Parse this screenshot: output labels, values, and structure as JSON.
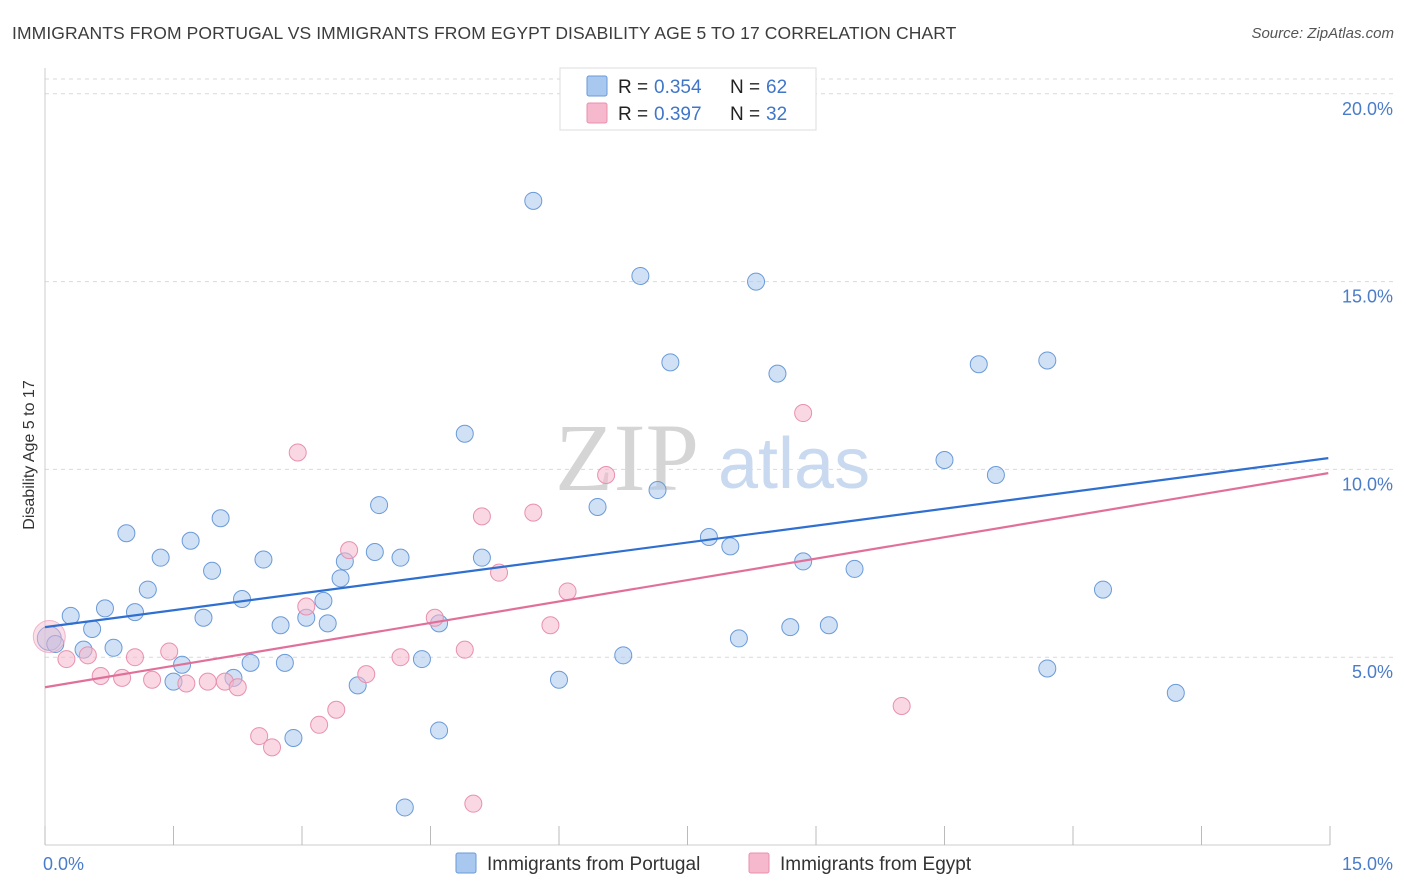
{
  "header": {
    "title": "IMMIGRANTS FROM PORTUGAL VS IMMIGRANTS FROM EGYPT DISABILITY AGE 5 TO 17 CORRELATION CHART",
    "source": "Source: ZipAtlas.com"
  },
  "watermark": {
    "zip": "ZIP",
    "atlas": "atlas"
  },
  "legend": {
    "r_label": "R =",
    "n_label": "N =",
    "portugal": {
      "r": "0.354",
      "n": "62"
    },
    "egypt": {
      "r": "0.397",
      "n": "32"
    }
  },
  "colors": {
    "portugal_fill": "#a9c8ef",
    "portugal_stroke": "#6a9ad8",
    "portugal_line": "#2e6fd0",
    "egypt_fill": "#f6b8cc",
    "egypt_stroke": "#e890ad",
    "egypt_line": "#e0709a",
    "tick_text": "#4a7cc9"
  },
  "chart_data": {
    "type": "scatter",
    "title": "IMMIGRANTS FROM PORTUGAL VS IMMIGRANTS FROM EGYPT DISABILITY AGE 5 TO 17 CORRELATION CHART",
    "xlabel": "",
    "ylabel": "Disability Age 5 to 17",
    "xlim": [
      0,
      15
    ],
    "ylim": [
      0,
      20.5
    ],
    "x_tick_labels": [
      "0.0%",
      "15.0%"
    ],
    "y_ticks": [
      5,
      10,
      15,
      20
    ],
    "y_tick_labels": [
      "5.0%",
      "10.0%",
      "15.0%",
      "20.0%"
    ],
    "grid": true,
    "legend_position": "top-center",
    "series": [
      {
        "name": "Immigrants from Portugal",
        "r": 0.354,
        "n": 62,
        "trend": {
          "x": [
            0,
            14.98
          ],
          "y": [
            5.8,
            10.3
          ]
        },
        "points": [
          [
            0.05,
            5.5
          ],
          [
            0.12,
            5.35
          ],
          [
            0.3,
            6.1
          ],
          [
            0.45,
            5.2
          ],
          [
            0.55,
            5.75
          ],
          [
            0.7,
            6.3
          ],
          [
            0.8,
            5.25
          ],
          [
            0.95,
            8.3
          ],
          [
            1.05,
            6.2
          ],
          [
            1.2,
            6.8
          ],
          [
            1.35,
            7.65
          ],
          [
            1.5,
            4.35
          ],
          [
            1.6,
            4.8
          ],
          [
            1.7,
            8.1
          ],
          [
            1.85,
            6.05
          ],
          [
            1.95,
            7.3
          ],
          [
            2.05,
            8.7
          ],
          [
            2.2,
            4.45
          ],
          [
            2.3,
            6.55
          ],
          [
            2.4,
            4.85
          ],
          [
            2.55,
            7.6
          ],
          [
            2.75,
            5.85
          ],
          [
            2.8,
            4.85
          ],
          [
            2.9,
            2.85
          ],
          [
            3.05,
            6.05
          ],
          [
            3.25,
            6.5
          ],
          [
            3.3,
            5.9
          ],
          [
            3.45,
            7.1
          ],
          [
            3.5,
            7.55
          ],
          [
            3.65,
            4.25
          ],
          [
            3.85,
            7.8
          ],
          [
            3.9,
            9.05
          ],
          [
            4.15,
            7.65
          ],
          [
            4.2,
            1.0
          ],
          [
            4.4,
            4.95
          ],
          [
            4.6,
            5.9
          ],
          [
            4.6,
            3.05
          ],
          [
            4.9,
            10.95
          ],
          [
            5.1,
            7.65
          ],
          [
            5.7,
            17.15
          ],
          [
            6.0,
            4.4
          ],
          [
            6.45,
            9.0
          ],
          [
            6.75,
            5.05
          ],
          [
            6.95,
            15.15
          ],
          [
            7.15,
            9.45
          ],
          [
            7.3,
            12.85
          ],
          [
            7.75,
            8.2
          ],
          [
            8.0,
            7.95
          ],
          [
            8.1,
            5.5
          ],
          [
            8.3,
            15.0
          ],
          [
            8.55,
            12.55
          ],
          [
            8.7,
            5.8
          ],
          [
            8.85,
            7.55
          ],
          [
            9.15,
            5.85
          ],
          [
            9.45,
            7.35
          ],
          [
            10.5,
            10.25
          ],
          [
            10.9,
            12.8
          ],
          [
            11.1,
            9.85
          ],
          [
            11.7,
            12.9
          ],
          [
            11.7,
            4.7
          ],
          [
            12.35,
            6.8
          ],
          [
            13.2,
            4.05
          ]
        ]
      },
      {
        "name": "Immigrants from Egypt",
        "r": 0.397,
        "n": 32,
        "trend": {
          "x": [
            0,
            14.98
          ],
          "y": [
            4.2,
            9.9
          ]
        },
        "points": [
          [
            0.05,
            5.55
          ],
          [
            0.25,
            4.95
          ],
          [
            0.5,
            5.05
          ],
          [
            0.65,
            4.5
          ],
          [
            0.9,
            4.45
          ],
          [
            1.05,
            5.0
          ],
          [
            1.25,
            4.4
          ],
          [
            1.45,
            5.15
          ],
          [
            1.65,
            4.3
          ],
          [
            1.9,
            4.35
          ],
          [
            2.1,
            4.35
          ],
          [
            2.25,
            4.2
          ],
          [
            2.5,
            2.9
          ],
          [
            2.65,
            2.6
          ],
          [
            2.95,
            10.45
          ],
          [
            3.05,
            6.35
          ],
          [
            3.2,
            3.2
          ],
          [
            3.4,
            3.6
          ],
          [
            3.55,
            7.85
          ],
          [
            3.75,
            4.55
          ],
          [
            4.15,
            5.0
          ],
          [
            4.55,
            6.05
          ],
          [
            4.9,
            5.2
          ],
          [
            5.0,
            1.1
          ],
          [
            5.1,
            8.75
          ],
          [
            5.3,
            7.25
          ],
          [
            5.7,
            8.85
          ],
          [
            5.9,
            5.85
          ],
          [
            6.1,
            6.75
          ],
          [
            6.55,
            9.85
          ],
          [
            8.85,
            11.5
          ],
          [
            10.0,
            3.7
          ]
        ]
      }
    ]
  },
  "bottom_legend": {
    "portugal_label": "Immigrants from Portugal",
    "egypt_label": "Immigrants from Egypt"
  }
}
